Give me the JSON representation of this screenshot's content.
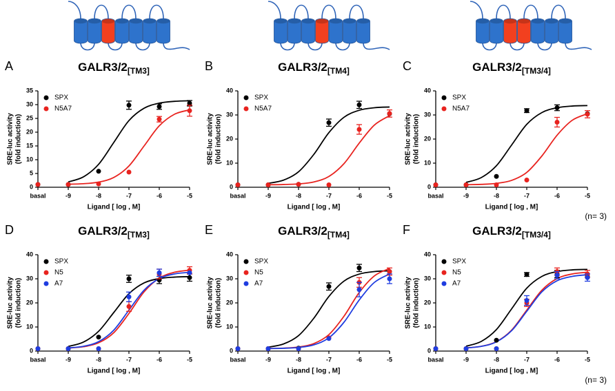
{
  "chart_data": [
    {
      "type": "scatter",
      "label": "A",
      "title": "GALR3/2",
      "title_subscript": "[TM3]",
      "ylabel": [
        "SRE-luc activity",
        "(fold induction)"
      ],
      "xlabel": "Ligand [ log , M]",
      "x": [
        -10,
        -9,
        -8,
        -7,
        -6,
        -5
      ],
      "fit_x": [
        -9,
        -8.5,
        -8,
        -7.5,
        -7,
        -6.5,
        -6,
        -5.5,
        -5
      ],
      "xlim": [
        -10,
        -5
      ],
      "xticks": [
        {
          "value": -10,
          "label": "basal"
        },
        -9,
        -8,
        -7,
        -6,
        -5
      ],
      "ylim": [
        0,
        35
      ],
      "yticks": [
        0,
        5,
        10,
        15,
        20,
        25,
        30,
        35
      ],
      "series": [
        {
          "name": "SPX",
          "color": "#000000",
          "values": [
            1,
            1,
            5.8,
            29.8,
            29.3,
            30.5
          ],
          "errors": [
            null,
            null,
            null,
            1.5,
            1,
            1
          ],
          "fit": [
            1.94,
            3.77,
            8.33,
            16.25,
            24.2,
            28.7,
            30.55,
            31.2,
            31.4
          ]
        },
        {
          "name": "N5A7",
          "color": "#e8231f",
          "values": [
            1,
            1,
            1.2,
            5.5,
            24.7,
            27.8
          ],
          "errors": [
            null,
            null,
            null,
            null,
            1,
            2
          ],
          "fit": [
            1.09,
            1.28,
            1.86,
            3.55,
            7.73,
            15,
            22.3,
            26.5,
            28.1
          ]
        }
      ]
    },
    {
      "type": "scatter",
      "label": "B",
      "title": "GALR3/2",
      "title_subscript": "[TM4]",
      "ylabel": [
        "SRE-luc activity",
        "(fold induction)"
      ],
      "xlabel": "Ligand [ log , M]",
      "x": [
        -10,
        -9,
        -8,
        -7,
        -6,
        -5
      ],
      "fit_x": [
        -9,
        -8.5,
        -8,
        -7.5,
        -7,
        -6.5,
        -6,
        -5.5,
        -5
      ],
      "xlim": [
        -10,
        -5
      ],
      "xticks": [
        {
          "value": -10,
          "label": "basal"
        },
        -9,
        -8,
        -7,
        -6,
        -5
      ],
      "ylim": [
        0,
        40
      ],
      "yticks": [
        0,
        10,
        20,
        30,
        40
      ],
      "series": [
        {
          "name": "SPX",
          "color": "#000000",
          "values": [
            1,
            1,
            1.2,
            26.8,
            34.2,
            30.5
          ],
          "errors": [
            null,
            null,
            null,
            1.5,
            1.5,
            null
          ],
          "fit": [
            1.64,
            2.93,
            6.41,
            13.57,
            22.65,
            29.06,
            31.95,
            33,
            33.3
          ]
        },
        {
          "name": "N5A7",
          "color": "#e8231f",
          "values": [
            1,
            1,
            1.2,
            1,
            24,
            30.6
          ],
          "errors": [
            null,
            null,
            null,
            null,
            2,
            1.5
          ],
          "fit": [
            1.04,
            1.12,
            1.39,
            2.19,
            4.47,
            9.83,
            18.3,
            25.8,
            29.7
          ]
        }
      ]
    },
    {
      "type": "scatter",
      "label": "C",
      "title": "GALR3/2",
      "title_subscript": "[TM3/4]",
      "ylabel": [
        "SRE-luc activity",
        "(fold induction)"
      ],
      "xlabel": "Ligand [ log , M]",
      "annotation": "(n= 3)",
      "x": [
        -10,
        -9,
        -8,
        -7,
        -6,
        -5
      ],
      "fit_x": [
        -9,
        -8.5,
        -8,
        -7.5,
        -7,
        -6.5,
        -6,
        -5.5,
        -5
      ],
      "xlim": [
        -10,
        -5
      ],
      "xticks": [
        {
          "value": -10,
          "label": "basal"
        },
        -9,
        -8,
        -7,
        -6,
        -5
      ],
      "ylim": [
        0,
        40
      ],
      "yticks": [
        0,
        10,
        20,
        30,
        40
      ],
      "series": [
        {
          "name": "SPX",
          "color": "#000000",
          "values": [
            1,
            1,
            4.5,
            31.8,
            33,
            30.5
          ],
          "errors": [
            null,
            null,
            null,
            0.8,
            1.2,
            null
          ],
          "fit": [
            2.01,
            4.0,
            8.93,
            17.5,
            26.1,
            31.0,
            33.0,
            33.7,
            33.9
          ]
        },
        {
          "name": "N5A7",
          "color": "#e8231f",
          "values": [
            1,
            1,
            1,
            3,
            27,
            30.3
          ],
          "errors": [
            null,
            null,
            null,
            null,
            2,
            1.5
          ],
          "fit": [
            1.06,
            1.19,
            1.61,
            2.84,
            6.16,
            13.0,
            21.6,
            27.8,
            30.5
          ]
        }
      ]
    },
    {
      "type": "scatter",
      "label": "D",
      "title": "GALR3/2",
      "title_subscript": "[TM3]",
      "ylabel": [
        "SRE-luc activity",
        "(fold induction)"
      ],
      "xlabel": "Ligand [ log , M]",
      "x": [
        -10,
        -9,
        -8,
        -7,
        -6,
        -5
      ],
      "fit_x": [
        -9,
        -8.5,
        -8,
        -7.5,
        -7,
        -6.5,
        -6,
        -5.5,
        -5
      ],
      "xlim": [
        -10,
        -5
      ],
      "xticks": [
        {
          "value": -10,
          "label": "basal"
        },
        -9,
        -8,
        -7,
        -6,
        -5
      ],
      "ylim": [
        0,
        40
      ],
      "yticks": [
        0,
        10,
        20,
        30,
        40
      ],
      "series": [
        {
          "name": "SPX",
          "color": "#000000",
          "values": [
            1,
            1,
            5.8,
            30,
            29.5,
            30.5
          ],
          "errors": [
            null,
            null,
            null,
            1.5,
            1.5,
            1.5
          ],
          "fit": [
            1.92,
            3.73,
            8.21,
            16,
            23.8,
            28.3,
            30.1,
            30.7,
            30.9
          ]
        },
        {
          "name": "N5",
          "color": "#e8231f",
          "values": [
            1,
            1,
            1,
            18.5,
            32,
            33.5
          ],
          "errors": [
            null,
            null,
            null,
            2,
            2,
            1.5
          ],
          "fit": [
            1.26,
            1.81,
            3.43,
            7.63,
            15.6,
            24.6,
            30.3,
            32.7,
            33.6
          ]
        },
        {
          "name": "A7",
          "color": "#1f3de0",
          "values": [
            1,
            1,
            1,
            22.5,
            32.5,
            32.5
          ],
          "errors": [
            null,
            null,
            null,
            2,
            1.5,
            null
          ],
          "fit": [
            1.32,
            1.98,
            3.91,
            8.69,
            17,
            25.3,
            30.1,
            32.0,
            32.7
          ]
        }
      ]
    },
    {
      "type": "scatter",
      "label": "E",
      "title": "GALR3/2",
      "title_subscript": "[TM4]",
      "ylabel": [
        "SRE-luc activity",
        "(fold induction)"
      ],
      "xlabel": "Ligand [ log , M]",
      "x": [
        -10,
        -9,
        -8,
        -7,
        -6,
        -5
      ],
      "fit_x": [
        -9,
        -8.5,
        -8,
        -7.5,
        -7,
        -6.5,
        -6,
        -5.5,
        -5
      ],
      "xlim": [
        -10,
        -5
      ],
      "xticks": [
        {
          "value": -10,
          "label": "basal"
        },
        -9,
        -8,
        -7,
        -6,
        -5
      ],
      "ylim": [
        0,
        40
      ],
      "yticks": [
        0,
        10,
        20,
        30,
        40
      ],
      "series": [
        {
          "name": "SPX",
          "color": "#000000",
          "values": [
            1,
            1,
            1.2,
            26.8,
            34.5,
            33
          ],
          "errors": [
            null,
            null,
            null,
            1.5,
            1.5,
            null
          ],
          "fit": [
            1.64,
            2.93,
            6.41,
            13.57,
            22.65,
            29.06,
            31.95,
            33,
            33.3
          ]
        },
        {
          "name": "N5",
          "color": "#e8231f",
          "values": [
            1,
            1,
            1,
            5.5,
            28.5,
            33
          ],
          "errors": [
            null,
            null,
            null,
            null,
            2,
            1.5
          ],
          "fit": [
            1.07,
            1.22,
            1.68,
            3.09,
            6.82,
            14.5,
            24.3,
            31.2,
            34.3
          ]
        },
        {
          "name": "A7",
          "color": "#1f3de0",
          "values": [
            1,
            1,
            1,
            5.2,
            25.5,
            30
          ],
          "errors": [
            null,
            null,
            null,
            null,
            3,
            2
          ],
          "fit": [
            1.05,
            1.16,
            1.51,
            2.57,
            5.51,
            12,
            21.2,
            28.5,
            32.0
          ]
        }
      ]
    },
    {
      "type": "scatter",
      "label": "F",
      "title": "GALR3/2",
      "title_subscript": "[TM3/4]",
      "ylabel": [
        "SRE-luc activity",
        "(fold induction)"
      ],
      "xlabel": "Ligand [ log , M]",
      "annotation": "(n= 3)",
      "x": [
        -10,
        -9,
        -8,
        -7,
        -6,
        -5
      ],
      "fit_x": [
        -9,
        -8.5,
        -8,
        -7.5,
        -7,
        -6.5,
        -6,
        -5.5,
        -5
      ],
      "xlim": [
        -10,
        -5
      ],
      "xticks": [
        {
          "value": -10,
          "label": "basal"
        },
        -9,
        -8,
        -7,
        -6,
        -5
      ],
      "ylim": [
        0,
        40
      ],
      "yticks": [
        0,
        10,
        20,
        30,
        40
      ],
      "series": [
        {
          "name": "SPX",
          "color": "#000000",
          "values": [
            1,
            1,
            4.5,
            31.8,
            32,
            31
          ],
          "errors": [
            null,
            null,
            null,
            0.8,
            1.5,
            null
          ],
          "fit": [
            2.01,
            4.0,
            8.93,
            17.5,
            26.1,
            31.0,
            33.0,
            33.7,
            33.9
          ]
        },
        {
          "name": "N5",
          "color": "#e8231f",
          "values": [
            1,
            1,
            1,
            20,
            33,
            32
          ],
          "errors": [
            null,
            null,
            null,
            1.5,
            1.5,
            1.5
          ],
          "fit": [
            1.32,
            1.98,
            3.91,
            8.69,
            17,
            25.3,
            30.1,
            32.0,
            32.7
          ]
        },
        {
          "name": "A7",
          "color": "#1f3de0",
          "values": [
            1,
            1,
            1,
            21,
            31.5,
            30.5
          ],
          "errors": [
            null,
            null,
            null,
            2,
            1.5,
            1.5
          ],
          "fit": [
            1.31,
            1.95,
            3.82,
            8.45,
            16.5,
            24.6,
            29.2,
            31.0,
            31.7
          ]
        }
      ]
    }
  ]
}
